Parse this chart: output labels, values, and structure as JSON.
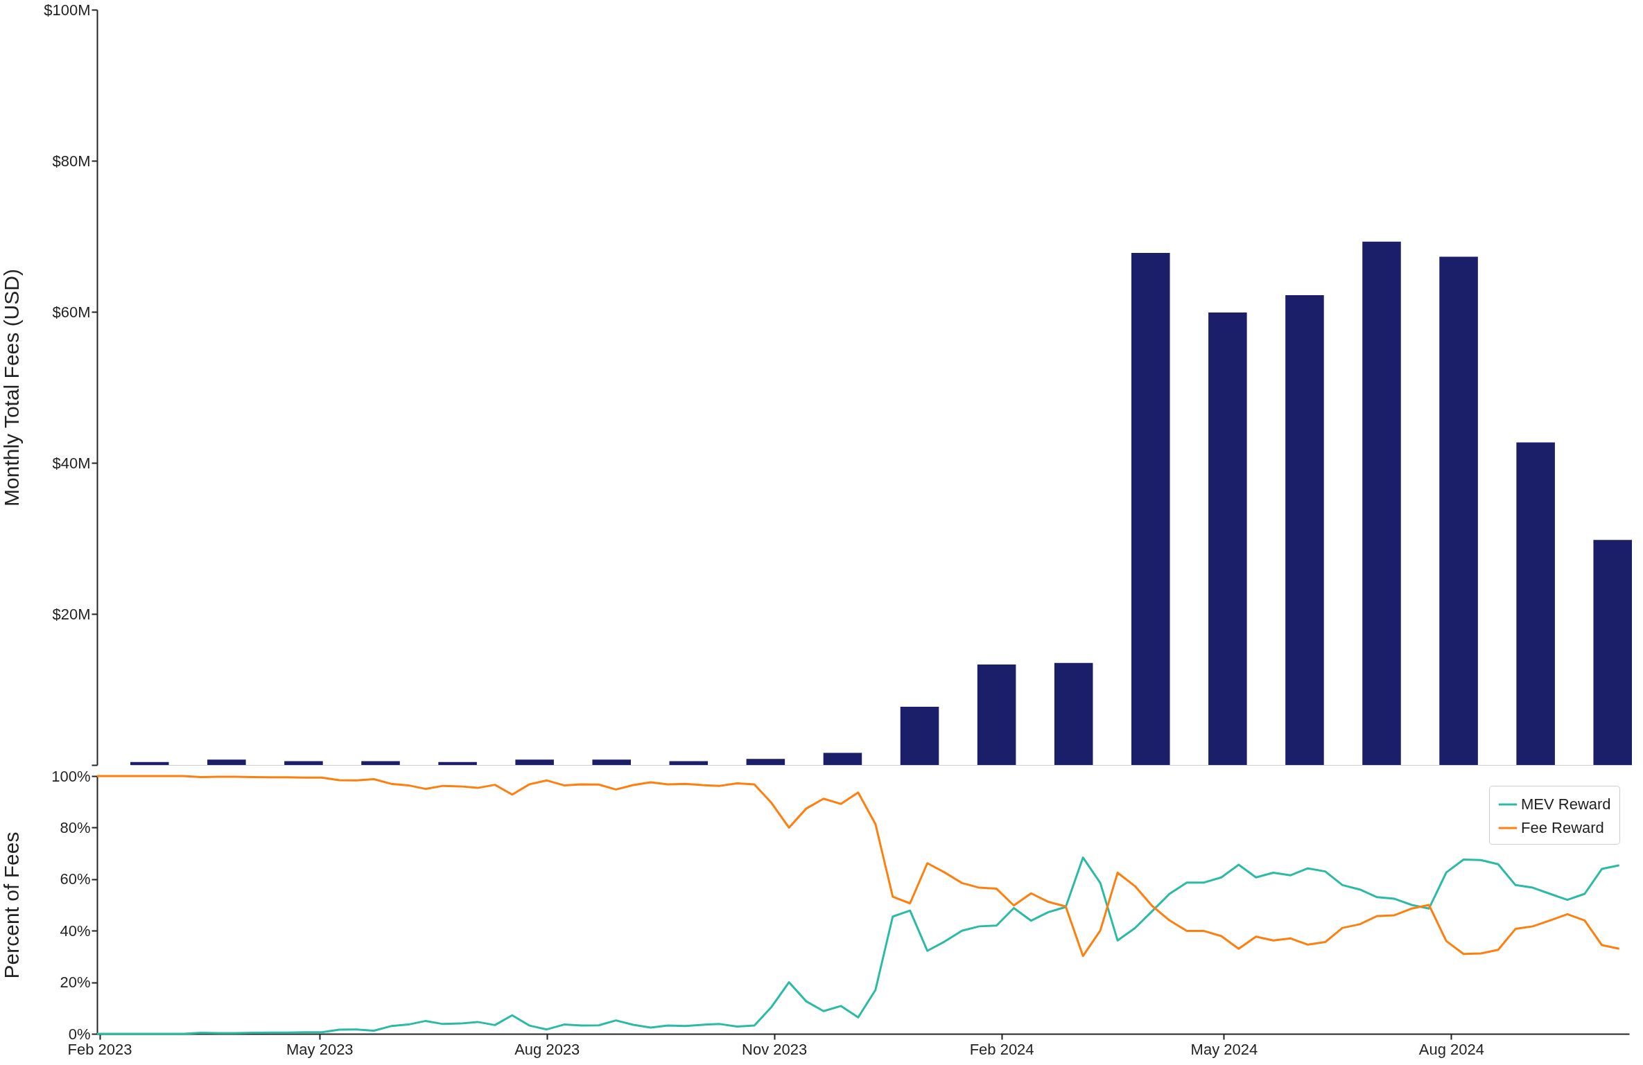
{
  "chart_data": [
    {
      "type": "bar",
      "ylabel": "Monthly Total Fees (USD)",
      "categories": [
        null,
        null,
        null,
        null,
        null,
        null,
        null,
        null,
        null,
        null,
        null,
        null,
        null,
        null,
        null,
        null,
        null,
        null,
        null,
        null
      ],
      "series": [
        {
          "color": "#1b1f69",
          "values": [
            0.4,
            0.7,
            0.5,
            0.5,
            0.4,
            0.7,
            0.7,
            0.5,
            0.8,
            1.6,
            7.7,
            13.3,
            13.5,
            67.8,
            59.9,
            62.2,
            69.3,
            67.3,
            42.7,
            29.8
          ]
        }
      ],
      "ylim": [
        0,
        100
      ],
      "yticks": [
        {
          "value": 0,
          "label": null
        },
        {
          "value": 20,
          "label": "$20M"
        },
        {
          "value": 40,
          "label": "$40M"
        },
        {
          "value": 60,
          "label": "$60M"
        },
        {
          "value": 80,
          "label": "$80M"
        },
        {
          "value": 100,
          "label": "$100M"
        }
      ],
      "tick_labels": "y",
      "grid": false
    },
    {
      "type": "line",
      "ylabel": "Percent of Fees",
      "x": [
        "2023-01-31",
        "2023-02-07",
        "2023-02-14",
        "2023-02-21",
        "2023-02-28",
        "2023-03-07",
        "2023-03-14",
        "2023-03-21",
        "2023-03-28",
        "2023-04-04",
        "2023-04-11",
        "2023-04-18",
        "2023-04-25",
        "2023-05-02",
        "2023-05-09",
        "2023-05-16",
        "2023-05-23",
        "2023-05-30",
        "2023-06-06",
        "2023-06-13",
        "2023-06-20",
        "2023-06-27",
        "2023-07-04",
        "2023-07-11",
        "2023-07-18",
        "2023-07-25",
        "2023-08-01",
        "2023-08-08",
        "2023-08-15",
        "2023-08-22",
        "2023-08-29",
        "2023-09-05",
        "2023-09-12",
        "2023-09-19",
        "2023-09-26",
        "2023-10-03",
        "2023-10-10",
        "2023-10-17",
        "2023-10-24",
        "2023-10-31",
        "2023-11-07",
        "2023-11-14",
        "2023-11-21",
        "2023-11-28",
        "2023-12-05",
        "2023-12-12",
        "2023-12-19",
        "2023-12-26",
        "2024-01-02",
        "2024-01-09",
        "2024-01-16",
        "2024-01-23",
        "2024-01-30",
        "2024-02-06",
        "2024-02-13",
        "2024-02-20",
        "2024-02-27",
        "2024-03-05",
        "2024-03-12",
        "2024-03-19",
        "2024-03-26",
        "2024-04-02",
        "2024-04-09",
        "2024-04-16",
        "2024-04-23",
        "2024-04-30",
        "2024-05-07",
        "2024-05-14",
        "2024-05-21",
        "2024-05-28",
        "2024-06-04",
        "2024-06-11",
        "2024-06-18",
        "2024-06-25",
        "2024-07-02",
        "2024-07-09",
        "2024-07-16",
        "2024-07-23",
        "2024-07-30",
        "2024-08-06",
        "2024-08-13",
        "2024-08-20",
        "2024-08-27",
        "2024-09-03",
        "2024-09-10",
        "2024-09-17",
        "2024-09-24",
        "2024-10-01",
        "2024-10-08"
      ],
      "series": [
        {
          "name": "MEV Reward",
          "color": "#2bbba5",
          "values": [
            0,
            0,
            0,
            0,
            0,
            0,
            0.4,
            0.3,
            0.3,
            0.4,
            0.5,
            0.5,
            0.6,
            0.6,
            1.6,
            1.7,
            1.2,
            3,
            3.6,
            5,
            3.8,
            4,
            4.6,
            3.4,
            7.2,
            3.2,
            1.7,
            3.6,
            3.2,
            3.3,
            5.2,
            3.5,
            2.4,
            3.2,
            3,
            3.5,
            3.8,
            2.8,
            3.2,
            10.5,
            20,
            12.6,
            8.8,
            10.8,
            6.4,
            17,
            45.5,
            47.8,
            32.2,
            35.8,
            40,
            41.7,
            42,
            48.8,
            43.9,
            47.2,
            49.2,
            68.4,
            58.5,
            36.2,
            41,
            47.6,
            54.3,
            58.7,
            58.7,
            60.7,
            65.6,
            60.7,
            62.5,
            61.5,
            64.2,
            63,
            57.7,
            56,
            53,
            52.4,
            50,
            48.6,
            62.6,
            67.6,
            67.4,
            65.8,
            57.7,
            56.7,
            54.3,
            52,
            54.3,
            64,
            65.4
          ]
        },
        {
          "name": "Fee Reward",
          "color": "#ff7f0e",
          "values": [
            100,
            100,
            100,
            100,
            100,
            100,
            99.6,
            99.7,
            99.7,
            99.6,
            99.5,
            99.5,
            99.4,
            99.4,
            98.4,
            98.3,
            98.8,
            97,
            96.4,
            95,
            96.2,
            96,
            95.4,
            96.6,
            92.8,
            96.8,
            98.3,
            96.4,
            96.8,
            96.7,
            94.8,
            96.5,
            97.6,
            96.8,
            97,
            96.5,
            96.2,
            97.2,
            96.8,
            89.5,
            80,
            87.4,
            91.2,
            89.2,
            93.6,
            81.4,
            53.2,
            50.6,
            66.2,
            62.6,
            58.5,
            56.7,
            56.3,
            49.8,
            54.5,
            51.2,
            49.4,
            30.2,
            40.1,
            62.5,
            57.3,
            49.6,
            44,
            39.9,
            39.9,
            37.9,
            33,
            37.7,
            36.2,
            37,
            34.6,
            35.6,
            41.1,
            42.5,
            45.7,
            46,
            48.6,
            50,
            36,
            31,
            31.2,
            32.6,
            40.7,
            41.7,
            44,
            46.4,
            44,
            34.4,
            33
          ]
        }
      ],
      "xlim": [
        "2023-01-31",
        "2024-10-12"
      ],
      "xticks": [
        {
          "value": "2023-02-01",
          "label": "Feb 2023"
        },
        {
          "value": "2023-05-01",
          "label": "May 2023"
        },
        {
          "value": "2023-08-01",
          "label": "Aug 2023"
        },
        {
          "value": "2023-11-01",
          "label": "Nov 2023"
        },
        {
          "value": "2024-02-01",
          "label": "Feb 2024"
        },
        {
          "value": "2024-05-01",
          "label": "May 2024"
        },
        {
          "value": "2024-08-01",
          "label": "Aug 2024"
        }
      ],
      "ylim": [
        0,
        100
      ],
      "yticks": [
        {
          "value": 0,
          "label": "0%"
        },
        {
          "value": 20,
          "label": "20%"
        },
        {
          "value": 40,
          "label": "40%"
        },
        {
          "value": 60,
          "label": "60%"
        },
        {
          "value": 80,
          "label": "80%"
        },
        {
          "value": 100,
          "label": "100%"
        }
      ],
      "grid": false,
      "legend": "top right",
      "marker": "none",
      "line_style": "solid"
    }
  ]
}
